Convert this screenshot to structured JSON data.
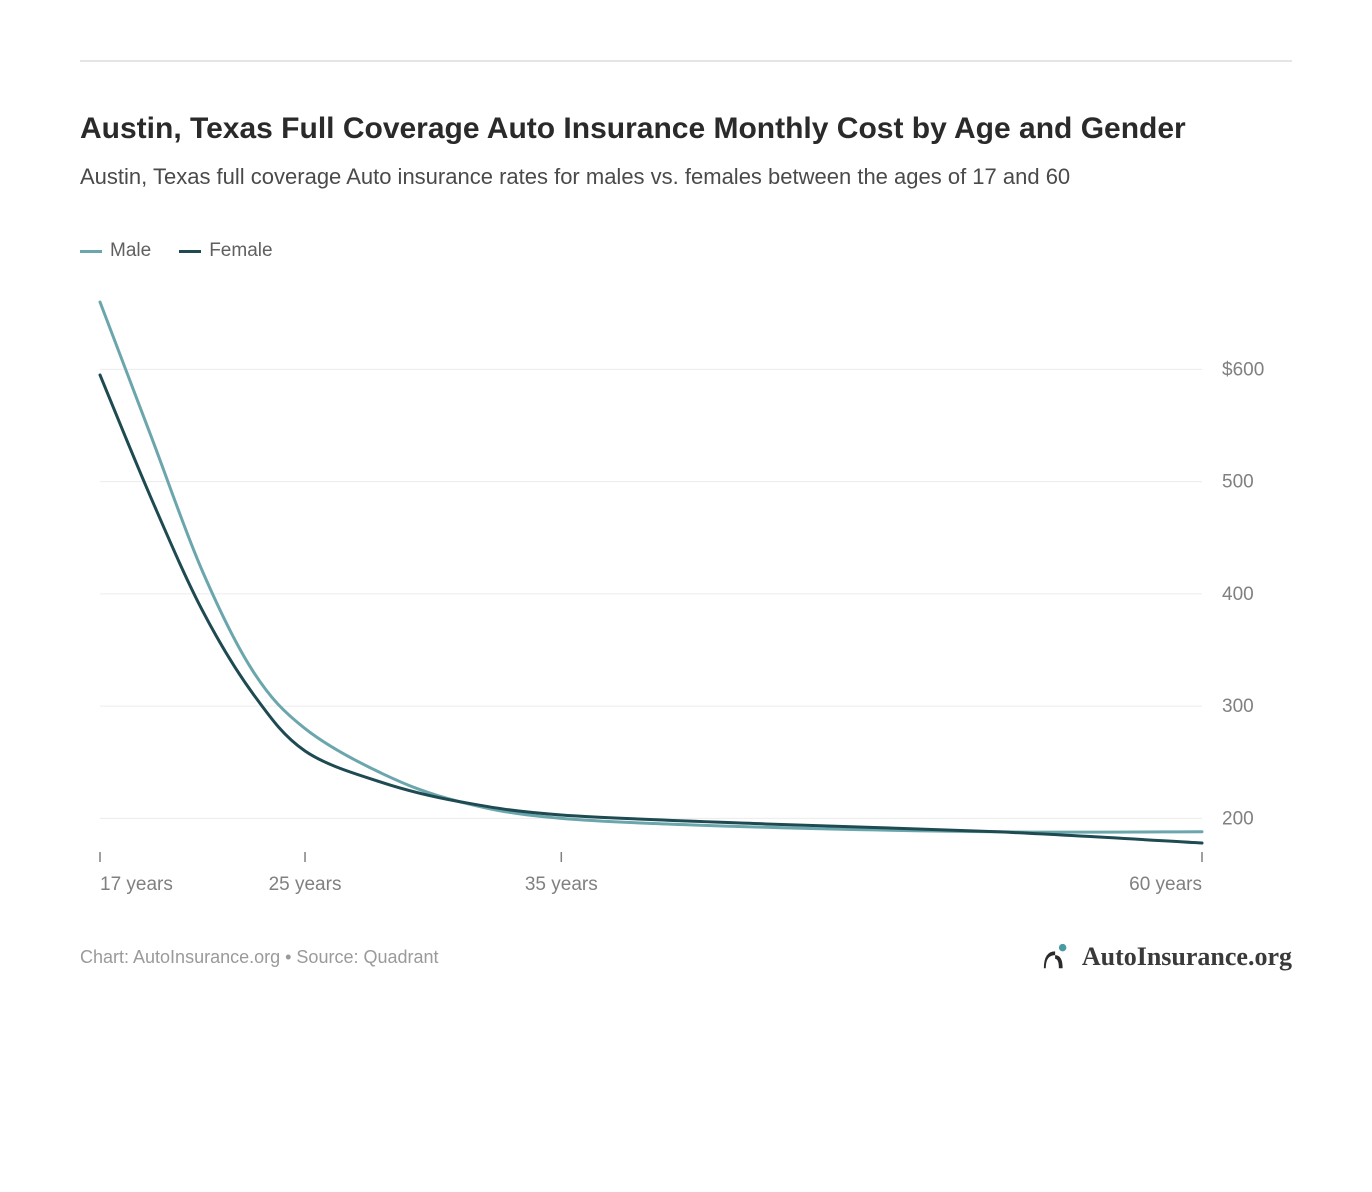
{
  "title": "Austin, Texas Full Coverage Auto Insurance Monthly Cost by Age and Gender",
  "subtitle": "Austin, Texas full coverage Auto insurance rates for males vs. females between the ages of 17 and 60",
  "legend": {
    "items": [
      {
        "label": "Male",
        "color": "#6ba6ad"
      },
      {
        "label": "Female",
        "color": "#1e4a52"
      }
    ]
  },
  "chart": {
    "type": "line",
    "background_color": "#ffffff",
    "grid_color": "#ececec",
    "axis_text_color": "#808080",
    "axis_fontsize": 19,
    "line_width": 3,
    "x_axis": {
      "ticks": [
        17,
        25,
        35,
        60
      ],
      "tick_labels": [
        "17 years",
        "25 years",
        "35 years",
        "60 years"
      ],
      "min": 17,
      "max": 60
    },
    "y_axis": {
      "ticks": [
        200,
        300,
        400,
        500,
        600
      ],
      "tick_labels": [
        "200",
        "300",
        "400",
        "500",
        "$600"
      ],
      "min": 170,
      "max": 660
    },
    "series": [
      {
        "name": "Male",
        "color": "#6ba6ad",
        "points": [
          {
            "x": 17,
            "y": 660
          },
          {
            "x": 19,
            "y": 540
          },
          {
            "x": 21,
            "y": 420
          },
          {
            "x": 23,
            "y": 330
          },
          {
            "x": 25,
            "y": 280
          },
          {
            "x": 28,
            "y": 240
          },
          {
            "x": 31,
            "y": 215
          },
          {
            "x": 35,
            "y": 200
          },
          {
            "x": 43,
            "y": 192
          },
          {
            "x": 52,
            "y": 188
          },
          {
            "x": 60,
            "y": 188
          }
        ]
      },
      {
        "name": "Female",
        "color": "#1e4a52",
        "points": [
          {
            "x": 17,
            "y": 595
          },
          {
            "x": 19,
            "y": 485
          },
          {
            "x": 21,
            "y": 385
          },
          {
            "x": 23,
            "y": 310
          },
          {
            "x": 25,
            "y": 260
          },
          {
            "x": 28,
            "y": 232
          },
          {
            "x": 31,
            "y": 215
          },
          {
            "x": 35,
            "y": 203
          },
          {
            "x": 43,
            "y": 195
          },
          {
            "x": 52,
            "y": 188
          },
          {
            "x": 60,
            "y": 178
          }
        ]
      }
    ]
  },
  "attribution": "Chart: AutoInsurance.org • Source: Quadrant",
  "brand": {
    "name": "AutoInsurance.org",
    "icon_color_dark": "#2a2a2a",
    "icon_color_accent": "#4a9aa5"
  }
}
